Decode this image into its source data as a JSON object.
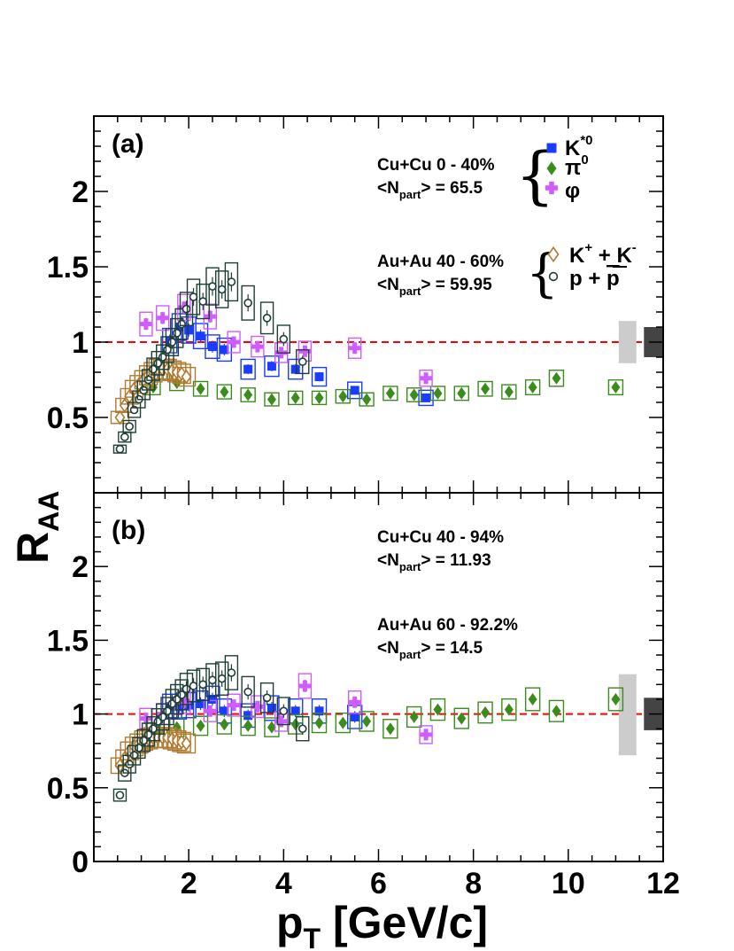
{
  "chart_data": [
    {
      "panel": "(a)",
      "type": "scatter",
      "xlim": [
        0,
        12
      ],
      "ylim": [
        0,
        2.5
      ],
      "reference_line": 1,
      "annotations": [
        {
          "lines": [
            "Cu+Cu 0 - 40%",
            "<N",
            "part",
            "> = 65.5"
          ]
        },
        {
          "lines": [
            "Au+Au 40 - 60%",
            "<N",
            "part",
            "> = 59.95"
          ]
        }
      ],
      "series": [
        {
          "name": "K*0",
          "color": "#1a3cff",
          "marker": "square",
          "x": [
            1.6,
            1.8,
            2.0,
            2.25,
            2.5,
            2.75,
            3.25,
            3.75,
            4.25,
            4.75,
            5.5,
            7.0
          ],
          "y": [
            1.01,
            1.1,
            1.08,
            1.04,
            0.97,
            0.95,
            0.82,
            0.84,
            0.82,
            0.77,
            0.68,
            0.63
          ]
        },
        {
          "name": "π0",
          "color": "#3b8c1c",
          "marker": "diamond",
          "x": [
            1.25,
            1.75,
            2.25,
            2.75,
            3.25,
            3.75,
            4.25,
            4.75,
            5.25,
            5.75,
            6.25,
            6.75,
            7.25,
            7.75,
            8.25,
            8.75,
            9.25,
            9.75,
            11.0
          ],
          "y": [
            0.7,
            0.73,
            0.69,
            0.67,
            0.65,
            0.62,
            0.63,
            0.63,
            0.64,
            0.62,
            0.66,
            0.65,
            0.66,
            0.66,
            0.69,
            0.67,
            0.7,
            0.76,
            0.7
          ]
        },
        {
          "name": "φ",
          "color": "#d05cff",
          "marker": "cross",
          "x": [
            1.1,
            1.45,
            1.9,
            2.45,
            2.95,
            3.45,
            3.95,
            4.45,
            5.5,
            7.0
          ],
          "y": [
            1.12,
            1.16,
            1.23,
            1.17,
            1.0,
            0.97,
            0.93,
            0.94,
            0.96,
            0.76
          ]
        },
        {
          "name": "K+ + K-",
          "color": "#b07a30",
          "marker": "open-diamond",
          "x": [
            0.55,
            0.65,
            0.75,
            0.85,
            0.95,
            1.05,
            1.15,
            1.25,
            1.35,
            1.45,
            1.55,
            1.65,
            1.75,
            1.85,
            1.95
          ],
          "y": [
            0.5,
            0.58,
            0.64,
            0.69,
            0.72,
            0.75,
            0.78,
            0.8,
            0.82,
            0.82,
            0.82,
            0.81,
            0.8,
            0.79,
            0.77
          ]
        },
        {
          "name": "p + p̄",
          "color": "#1f3f36",
          "marker": "open-circle",
          "x": [
            0.55,
            0.65,
            0.75,
            0.85,
            0.95,
            1.05,
            1.15,
            1.25,
            1.35,
            1.45,
            1.55,
            1.65,
            1.75,
            1.85,
            1.95,
            2.1,
            2.3,
            2.5,
            2.7,
            2.9,
            3.25,
            3.65,
            4.0,
            4.4
          ],
          "y": [
            0.29,
            0.37,
            0.44,
            0.55,
            0.62,
            0.68,
            0.75,
            0.82,
            0.86,
            0.9,
            0.95,
            1.0,
            1.06,
            1.12,
            1.22,
            1.3,
            1.27,
            1.37,
            1.35,
            1.4,
            1.26,
            1.16,
            1.02,
            0.87
          ]
        }
      ],
      "sys_bands": [
        {
          "x": 11.25,
          "color": "#cccccc",
          "low": 0.86,
          "high": 1.14
        },
        {
          "x": 11.8,
          "color": "#444444",
          "low": 0.9,
          "high": 1.1
        }
      ]
    },
    {
      "panel": "(b)",
      "type": "scatter",
      "xlim": [
        0,
        12
      ],
      "ylim": [
        0,
        2.5
      ],
      "reference_line": 1,
      "annotations": [
        {
          "lines": [
            "Cu+Cu 40 - 94%",
            "<N",
            "part",
            "> = 11.93"
          ]
        },
        {
          "lines": [
            "Au+Au 60 - 92.2%",
            "<N",
            "part",
            "> = 14.5"
          ]
        }
      ],
      "series": [
        {
          "name": "K*0",
          "color": "#1a3cff",
          "marker": "square",
          "x": [
            1.6,
            1.8,
            2.0,
            2.25,
            2.5,
            2.75,
            3.25,
            3.75,
            4.25,
            4.75,
            5.5
          ],
          "y": [
            1.05,
            1.05,
            1.06,
            1.07,
            1.1,
            1.02,
            0.99,
            1.04,
            1.02,
            1.02,
            0.98
          ]
        },
        {
          "name": "π0",
          "color": "#3b8c1c",
          "marker": "diamond",
          "x": [
            1.25,
            1.75,
            2.25,
            2.75,
            3.25,
            3.75,
            4.25,
            4.75,
            5.25,
            5.75,
            6.25,
            6.75,
            7.25,
            7.75,
            8.25,
            8.75,
            9.25,
            9.75,
            11.0
          ],
          "y": [
            0.88,
            0.91,
            0.92,
            0.93,
            0.92,
            0.91,
            0.93,
            0.94,
            0.94,
            0.95,
            0.9,
            0.98,
            1.03,
            0.97,
            1.01,
            1.03,
            1.1,
            1.02,
            1.1
          ]
        },
        {
          "name": "φ",
          "color": "#d05cff",
          "marker": "cross",
          "x": [
            1.1,
            1.45,
            1.9,
            2.45,
            2.95,
            3.45,
            3.95,
            4.45,
            5.5,
            7.0
          ],
          "y": [
            0.97,
            1.0,
            1.08,
            1.02,
            1.06,
            1.05,
            0.95,
            1.19,
            1.08,
            0.86
          ]
        },
        {
          "name": "K+ + K-",
          "color": "#b07a30",
          "marker": "open-diamond",
          "x": [
            0.55,
            0.65,
            0.75,
            0.85,
            0.95,
            1.05,
            1.15,
            1.25,
            1.35,
            1.45,
            1.55,
            1.65,
            1.75,
            1.85,
            1.95
          ],
          "y": [
            0.65,
            0.7,
            0.75,
            0.78,
            0.8,
            0.82,
            0.83,
            0.84,
            0.84,
            0.84,
            0.84,
            0.83,
            0.82,
            0.81,
            0.8
          ]
        },
        {
          "name": "p + p̄",
          "color": "#1f3f36",
          "marker": "open-circle",
          "x": [
            0.55,
            0.65,
            0.75,
            0.85,
            0.95,
            1.05,
            1.15,
            1.25,
            1.35,
            1.45,
            1.55,
            1.65,
            1.75,
            1.85,
            1.95,
            2.1,
            2.3,
            2.5,
            2.7,
            2.9,
            3.25,
            3.65,
            4.0,
            4.4
          ],
          "y": [
            0.45,
            0.6,
            0.66,
            0.72,
            0.77,
            0.82,
            0.86,
            0.9,
            0.95,
            0.98,
            1.02,
            1.07,
            1.1,
            1.13,
            1.17,
            1.19,
            1.2,
            1.23,
            1.24,
            1.28,
            1.15,
            1.11,
            1.02,
            0.9
          ]
        }
      ],
      "sys_bands": [
        {
          "x": 11.25,
          "color": "#cccccc",
          "low": 0.72,
          "high": 1.27
        },
        {
          "x": 11.8,
          "color": "#444444",
          "low": 0.89,
          "high": 1.11
        }
      ]
    }
  ],
  "legend": {
    "entries": [
      {
        "key": "K*0",
        "label": "K",
        "sup": "*0",
        "marker": "square",
        "color": "#1a3cff"
      },
      {
        "key": "π0",
        "label": "π",
        "sup": "0",
        "marker": "diamond",
        "color": "#3b8c1c"
      },
      {
        "key": "φ",
        "label": "φ",
        "marker": "cross",
        "color": "#d05cff"
      },
      {
        "key": "K+ + K-",
        "label": "K",
        "sup": "+",
        "label2": " + K",
        "sup2": "-",
        "marker": "open-diamond",
        "color": "#b07a30"
      },
      {
        "key": "p + p̄",
        "label": "p + ",
        "label2": "p",
        "overline2": true,
        "marker": "open-circle",
        "color": "#1f3f36"
      }
    ]
  },
  "axes": {
    "x_title": "p",
    "x_title_sub": "T",
    "x_title_rest": " [GeV/c]",
    "y_title": "R",
    "y_title_sub": "AA",
    "x_tick_labels": [
      "2",
      "4",
      "6",
      "8",
      "10",
      "12"
    ],
    "y_tick_labels_a": [
      "0.5",
      "1",
      "1.5",
      "2"
    ],
    "y_tick_labels_b": [
      "0",
      "0.5",
      "1",
      "1.5",
      "2"
    ]
  },
  "colors": {
    "reference_line": "#ff0000",
    "frame": "#000000"
  }
}
